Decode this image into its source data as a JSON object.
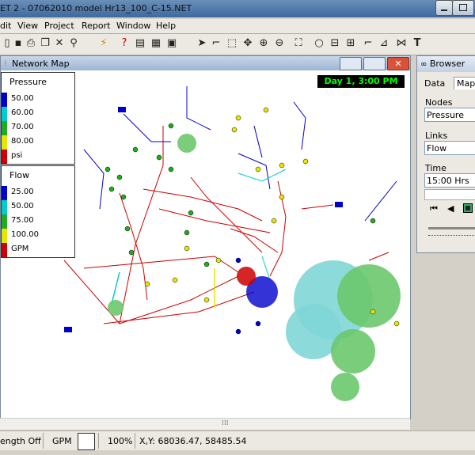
{
  "window": {
    "title": "ET 2 - 07062010 model Hr13_100_C-15.NET"
  },
  "menu": [
    "dit",
    "View",
    "Project",
    "Report",
    "Window",
    "Help"
  ],
  "map_window": {
    "title": "Network Map",
    "day_time": "Day 1, 3:00 PM"
  },
  "legend_pressure": {
    "title": "Pressure",
    "items": [
      {
        "label": "50.00",
        "color": "#0000cc"
      },
      {
        "label": "60.00",
        "color": "#00cccc"
      },
      {
        "label": "70.00",
        "color": "#22aa22"
      },
      {
        "label": "80.00",
        "color": "#e6e600"
      },
      {
        "label": "psi",
        "color": "#cc0000"
      }
    ]
  },
  "legend_flow": {
    "title": "Flow",
    "items": [
      {
        "label": "25.00",
        "color": "#0000cc"
      },
      {
        "label": "50.00",
        "color": "#00cccc"
      },
      {
        "label": "75.00",
        "color": "#22aa22"
      },
      {
        "label": "100.00",
        "color": "#e6e600"
      },
      {
        "label": "GPM",
        "color": "#cc0000"
      }
    ]
  },
  "browser": {
    "title": "Browser",
    "tabs": [
      "Data",
      "Map"
    ],
    "nodes_label": "Nodes",
    "nodes_value": "Pressure",
    "links_label": "Links",
    "links_value": "Flow",
    "time_label": "Time",
    "time_value": "15:00 Hrs"
  },
  "status": {
    "length": "ength Off",
    "units": "GPM",
    "zoom": "100%",
    "coords": "X,Y: 68036.47, 58485.54"
  }
}
